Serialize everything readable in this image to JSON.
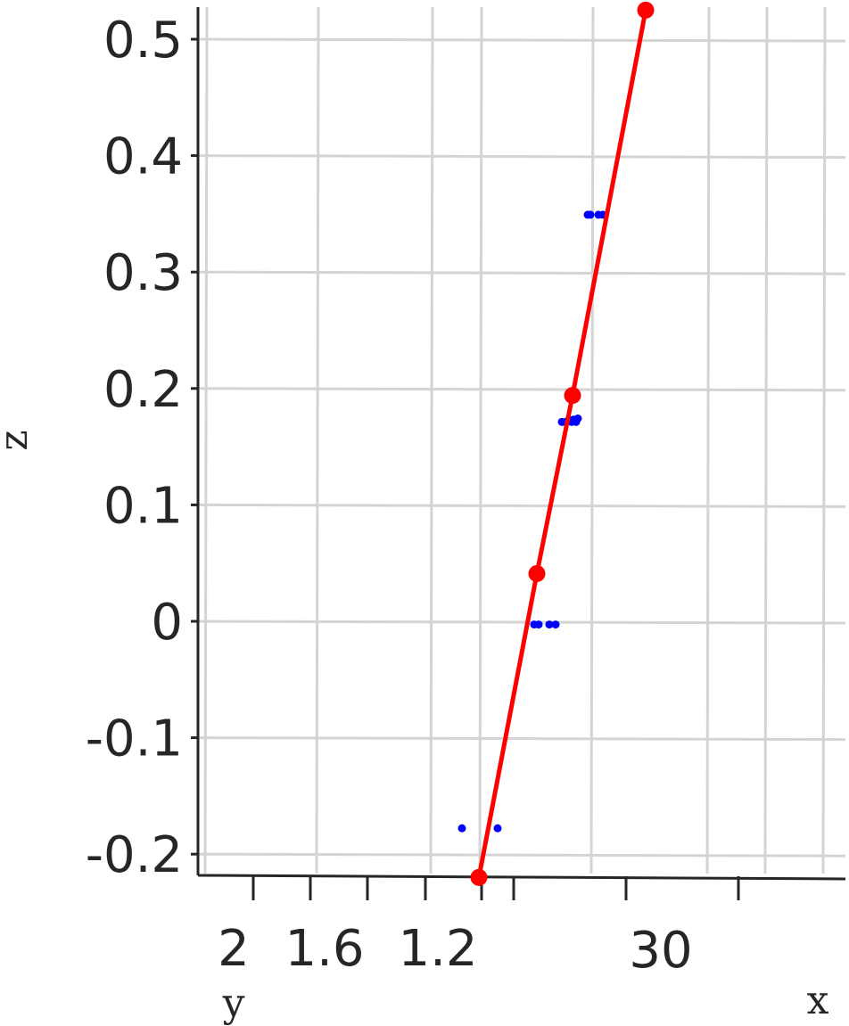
{
  "chart_data": {
    "type": "scatter",
    "projection": "3d",
    "title": "",
    "xlabel": "x",
    "ylabel": "y",
    "zlabel": "z",
    "zlim": [
      -0.22,
      0.525
    ],
    "z_ticks": [
      "0.5",
      "0.4",
      "0.3",
      "0.2",
      "0.1",
      "0",
      "-0.1",
      "-0.2"
    ],
    "y_ticks": [
      "2",
      "1.6",
      "1.2"
    ],
    "x_ticks": [
      "30"
    ],
    "grid": true,
    "series": [
      {
        "type": "scatter",
        "color": "#0000ff",
        "points_z": [
          0.35,
          0.35,
          0.35,
          0.35,
          0.172,
          0.172,
          0.174,
          0.172,
          0.174,
          0.172,
          0.175,
          -0.002,
          -0.002,
          -0.002,
          -0.002,
          -0.177,
          -0.177
        ]
      },
      {
        "type": "line",
        "color": "#ff0000",
        "markers": true,
        "points_z": [
          0.525,
          0.194,
          0.041,
          -0.22
        ]
      }
    ]
  }
}
